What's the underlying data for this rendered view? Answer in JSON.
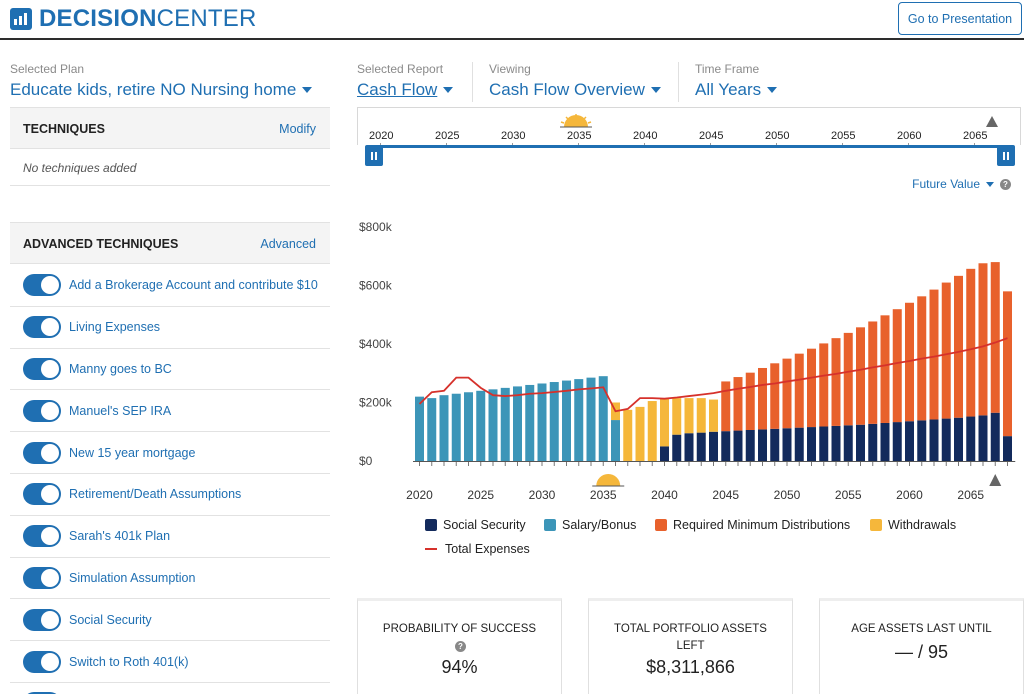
{
  "app": {
    "logo_bold": "DECISION",
    "logo_light": "CENTER",
    "present_button": "Go to Presentation"
  },
  "selected_plan": {
    "label": "Selected Plan",
    "value": "Educate kids, retire NO Nursing home"
  },
  "report": {
    "label": "Selected Report",
    "value": "Cash Flow"
  },
  "viewing": {
    "label": "Viewing",
    "value": "Cash Flow Overview"
  },
  "time_frame": {
    "label": "Time Frame",
    "value": "All Years"
  },
  "techniques": {
    "title": "TECHNIQUES",
    "action": "Modify",
    "empty": "No techniques added"
  },
  "advanced": {
    "title": "ADVANCED TECHNIQUES",
    "action": "Advanced",
    "items": [
      {
        "label": "Add a Brokerage Account and contribute $10",
        "enabled": true
      },
      {
        "label": "Living Expenses",
        "enabled": true
      },
      {
        "label": "Manny goes to BC",
        "enabled": true
      },
      {
        "label": "Manuel's SEP IRA",
        "enabled": true
      },
      {
        "label": "New 15 year mortgage",
        "enabled": true
      },
      {
        "label": "Retirement/Death Assumptions",
        "enabled": true
      },
      {
        "label": "Sarah's 401k Plan",
        "enabled": true
      },
      {
        "label": "Simulation Assumption",
        "enabled": true
      },
      {
        "label": "Social Security",
        "enabled": true
      },
      {
        "label": "Switch to Roth 401(k)",
        "enabled": true
      }
    ]
  },
  "timeline": {
    "years": [
      "2020",
      "2025",
      "2030",
      "2035",
      "2040",
      "2045",
      "2050",
      "2055",
      "2060",
      "2065"
    ],
    "range_start": 2020,
    "range_end": 2068
  },
  "value_mode": "Future Value",
  "colors": {
    "brand": "#1f6fb2",
    "social_security": "#132a5c",
    "salary": "#3c95b8",
    "rmd": "#e8612c",
    "withdrawals": "#f5b73b",
    "expenses": "#d6312b"
  },
  "chart_data": {
    "type": "bar",
    "stacked": true,
    "x": [
      2020,
      2021,
      2022,
      2023,
      2024,
      2025,
      2026,
      2027,
      2028,
      2029,
      2030,
      2031,
      2032,
      2033,
      2034,
      2035,
      2036,
      2037,
      2038,
      2039,
      2040,
      2041,
      2042,
      2043,
      2044,
      2045,
      2046,
      2047,
      2048,
      2049,
      2050,
      2051,
      2052,
      2053,
      2054,
      2055,
      2056,
      2057,
      2058,
      2059,
      2060,
      2061,
      2062,
      2063,
      2064,
      2065,
      2066,
      2067,
      2068
    ],
    "xticks": [
      "2020",
      "2025",
      "2030",
      "2035",
      "2040",
      "2045",
      "2050",
      "2055",
      "2060",
      "2065"
    ],
    "yticks": [
      "$0",
      "$200k",
      "$400k",
      "$600k",
      "$800k"
    ],
    "ylim": [
      0,
      800000
    ],
    "series": [
      {
        "name": "Social Security",
        "values": [
          0,
          0,
          0,
          0,
          0,
          0,
          0,
          0,
          0,
          0,
          0,
          0,
          0,
          0,
          0,
          0,
          0,
          0,
          0,
          0,
          50000,
          90000,
          95000,
          97000,
          100000,
          102000,
          104000,
          106000,
          108000,
          110000,
          112000,
          114000,
          116000,
          118000,
          120000,
          122000,
          124000,
          127000,
          130000,
          133000,
          136000,
          139000,
          142000,
          145000,
          148000,
          152000,
          156000,
          165000,
          85000
        ]
      },
      {
        "name": "Salary/Bonus",
        "values": [
          220000,
          215000,
          225000,
          230000,
          235000,
          240000,
          245000,
          250000,
          255000,
          260000,
          265000,
          270000,
          275000,
          280000,
          285000,
          290000,
          140000,
          0,
          0,
          0,
          0,
          0,
          0,
          0,
          0,
          0,
          0,
          0,
          0,
          0,
          0,
          0,
          0,
          0,
          0,
          0,
          0,
          0,
          0,
          0,
          0,
          0,
          0,
          0,
          0,
          0,
          0,
          0,
          0
        ]
      },
      {
        "name": "Required Minimum Distributions",
        "values": [
          0,
          0,
          0,
          0,
          0,
          0,
          0,
          0,
          0,
          0,
          0,
          0,
          0,
          0,
          0,
          0,
          0,
          0,
          0,
          0,
          0,
          0,
          0,
          0,
          0,
          170000,
          183000,
          196000,
          210000,
          224000,
          238000,
          253000,
          268000,
          284000,
          300000,
          316000,
          333000,
          350000,
          368000,
          386000,
          405000,
          424000,
          444000,
          465000,
          485000,
          505000,
          520000,
          515000,
          495000
        ]
      },
      {
        "name": "Withdrawals",
        "values": [
          0,
          0,
          0,
          0,
          0,
          0,
          0,
          0,
          0,
          0,
          0,
          0,
          0,
          0,
          0,
          0,
          60000,
          175000,
          185000,
          205000,
          165000,
          125000,
          120000,
          118000,
          110000,
          0,
          0,
          0,
          0,
          0,
          0,
          0,
          0,
          0,
          0,
          0,
          0,
          0,
          0,
          0,
          0,
          0,
          0,
          0,
          0,
          0,
          0,
          0,
          0
        ]
      },
      {
        "name": "Total Expenses",
        "type": "line",
        "values": [
          195000,
          235000,
          240000,
          285000,
          285000,
          250000,
          225000,
          222000,
          225000,
          230000,
          232000,
          236000,
          240000,
          245000,
          248000,
          252000,
          170000,
          178000,
          215000,
          215000,
          213000,
          217000,
          222000,
          227000,
          232000,
          240000,
          247000,
          253000,
          260000,
          265000,
          272000,
          278000,
          285000,
          292000,
          298000,
          305000,
          312000,
          320000,
          327000,
          335000,
          342000,
          350000,
          357000,
          365000,
          373000,
          382000,
          392000,
          405000,
          420000
        ]
      }
    ]
  },
  "stats": {
    "probability": {
      "label": "PROBABILITY OF SUCCESS",
      "value": "94%"
    },
    "portfolio": {
      "label": "TOTAL PORTFOLIO ASSETS LEFT",
      "value": "$8,311,866"
    },
    "age": {
      "label": "AGE ASSETS LAST UNTIL",
      "value": "— / 95"
    }
  }
}
